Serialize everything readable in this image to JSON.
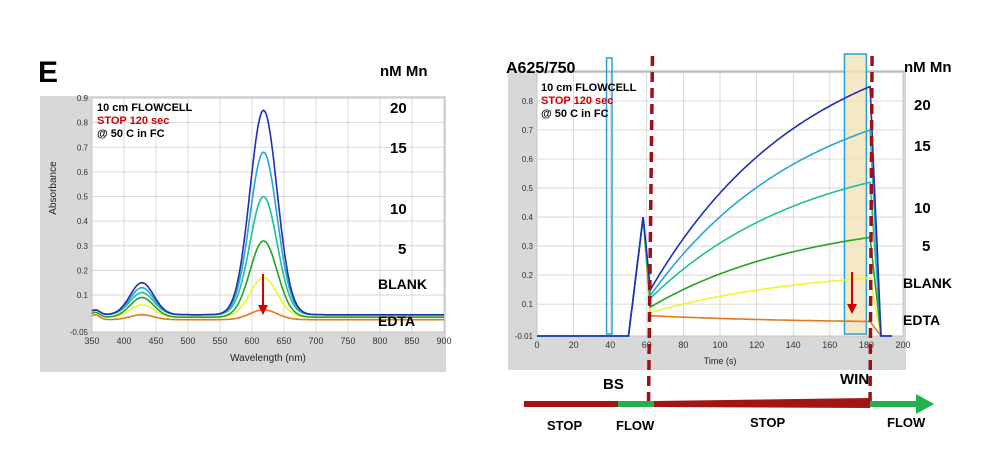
{
  "panels": {
    "left": {
      "letter": "E",
      "unit_header": "nM Mn",
      "flowcell": "10 cm FLOWCELL",
      "stop": "STOP 120 sec",
      "temp": "@ 50 C in FC",
      "labels": [
        "20",
        "15",
        "10",
        "5",
        "BLANK",
        "EDTA"
      ]
    },
    "right": {
      "axis_title": "A625/750",
      "unit_header": "nM Mn",
      "flowcell": "10 cm FLOWCELL",
      "stop": "STOP 120 sec",
      "temp": "@ 50 C in FC",
      "labels": [
        "20",
        "15",
        "10",
        "5",
        "BLANK",
        "EDTA"
      ],
      "bs": "BS",
      "win": "WIN",
      "timeline": [
        "STOP",
        "FLOW",
        "STOP",
        "FLOW"
      ]
    }
  },
  "colors": {
    "c20": "#1f2fb4",
    "c15": "#27a6cf",
    "c10": "#1fbf9a",
    "c5": "#22a322",
    "blank": "#f2f233",
    "edta": "#e07a1a",
    "stop_red": "#d10000",
    "dashed": "#a01010",
    "flow_green": "#22b14c",
    "bar_red": "#a51414"
  },
  "chart_data": [
    {
      "type": "line",
      "title": "",
      "xlabel": "Wavelength (nm)",
      "ylabel": "Absorbance",
      "xlim": [
        350,
        900
      ],
      "ylim": [
        -0.05,
        0.9
      ],
      "xticks": [
        350,
        400,
        450,
        500,
        550,
        600,
        650,
        700,
        750,
        800,
        850,
        900
      ],
      "yticks": [
        -0.05,
        0.1,
        0.2,
        0.3,
        0.4,
        0.5,
        0.6,
        0.7,
        0.8,
        0.9
      ],
      "peak_positions_nm": [
        428,
        618
      ],
      "series": [
        {
          "name": "20",
          "baseline": 0.02,
          "peak1": 0.15,
          "peak2": 0.85
        },
        {
          "name": "15",
          "baseline": 0.02,
          "peak1": 0.13,
          "peak2": 0.68
        },
        {
          "name": "10",
          "baseline": 0.02,
          "peak1": 0.11,
          "peak2": 0.5
        },
        {
          "name": "5",
          "baseline": 0.01,
          "peak1": 0.09,
          "peak2": 0.32
        },
        {
          "name": "BLANK",
          "baseline": 0.01,
          "peak1": 0.06,
          "peak2": 0.17
        },
        {
          "name": "EDTA",
          "baseline": 0.0,
          "peak1": 0.02,
          "peak2": 0.04
        }
      ]
    },
    {
      "type": "line",
      "title": "",
      "xlabel": "Time (s)",
      "ylabel": "A625/750",
      "xlim": [
        0,
        200
      ],
      "ylim": [
        -0.01,
        0.9
      ],
      "xticks": [
        0,
        20,
        40,
        60,
        80,
        100,
        120,
        140,
        160,
        180,
        200
      ],
      "yticks": [
        -0.01,
        0.1,
        0.2,
        0.3,
        0.4,
        0.5,
        0.6,
        0.7,
        0.8
      ],
      "stop_start_s": 62,
      "flow_start_s": 182,
      "bs_window_s": [
        38,
        41
      ],
      "win_window_s": [
        168,
        180
      ],
      "series": [
        {
          "name": "20",
          "start": 0.15,
          "end": 0.85
        },
        {
          "name": "15",
          "start": 0.13,
          "end": 0.7
        },
        {
          "name": "10",
          "start": 0.12,
          "end": 0.52
        },
        {
          "name": "5",
          "start": 0.09,
          "end": 0.33
        },
        {
          "name": "BLANK",
          "start": 0.07,
          "end": 0.19
        },
        {
          "name": "EDTA",
          "start": 0.06,
          "end": 0.04
        }
      ]
    }
  ]
}
